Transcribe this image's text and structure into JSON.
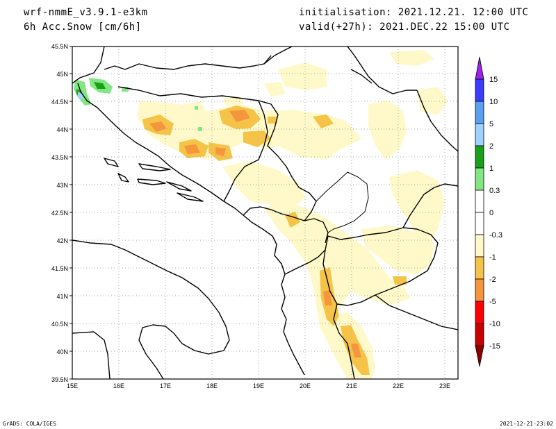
{
  "header": {
    "model": "wrf-nmmE_v3.9.1-e3km",
    "field": "6h Acc.Snow [cm/6h]",
    "init": "initialisation: 2021.12.21.  12:00 UTC",
    "valid": "valid(+27h): 2021.DEC.22 15:00 UTC"
  },
  "axes": {
    "lat_labels": [
      "45.5N",
      "45N",
      "44.5N",
      "44N",
      "43.5N",
      "43N",
      "42.5N",
      "42N",
      "41.5N",
      "41N",
      "40.5N",
      "40N",
      "39.5N"
    ],
    "lon_labels": [
      "15E",
      "16E",
      "17E",
      "18E",
      "19E",
      "20E",
      "21E",
      "22E",
      "23E"
    ]
  },
  "colorbar": {
    "labels": [
      "15",
      "10",
      "5",
      "2",
      "1",
      "0.3",
      "0",
      "-0.3",
      "-1",
      "-2",
      "-5",
      "-10",
      "-15"
    ],
    "colors": {
      "violet": "#a020f0",
      "blue": "#3c3cff",
      "mid_blue": "#5aa0f0",
      "light_blue": "#a0d2ff",
      "green": "#18a018",
      "light_green": "#82e682",
      "white": "#ffffff",
      "pale_yellow": "#fff8c8",
      "yellow_orange": "#f5c347",
      "orange": "#f5963c",
      "red": "#ff0000",
      "dark_red": "#c80000",
      "maroon": "#8c0000"
    }
  },
  "footer": {
    "left": "GrADS: COLA/IGES",
    "right": "2021-12-21-23:02"
  }
}
